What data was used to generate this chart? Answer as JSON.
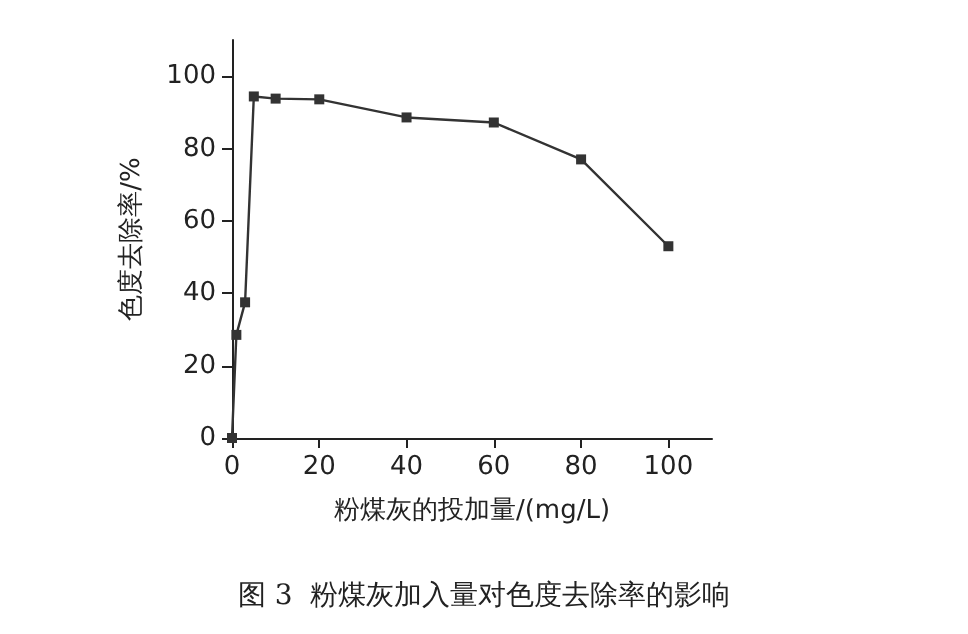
{
  "chart_data": {
    "type": "line",
    "xlabel": "粉煤灰的投加量/(mg/L)",
    "ylabel": "色度去除率/%",
    "annotations": [
      "图 3  粉煤灰加入量对色度去除率的影响"
    ],
    "x": [
      0,
      1,
      3,
      5,
      10,
      20,
      40,
      60,
      80,
      100
    ],
    "series": [
      {
        "color": "#333333",
        "values": [
          0,
          28.5,
          37.5,
          94.4,
          93.8,
          93.6,
          88.6,
          87.2,
          77,
          53
        ]
      }
    ],
    "xlim": [
      0,
      110
    ],
    "xticks": [
      0,
      20,
      40,
      60,
      80,
      100
    ],
    "ylim": [
      0,
      110
    ],
    "yticks": [
      0,
      20,
      40,
      60,
      80,
      100
    ],
    "grid": false,
    "marker": "square",
    "line_style": "solid"
  }
}
